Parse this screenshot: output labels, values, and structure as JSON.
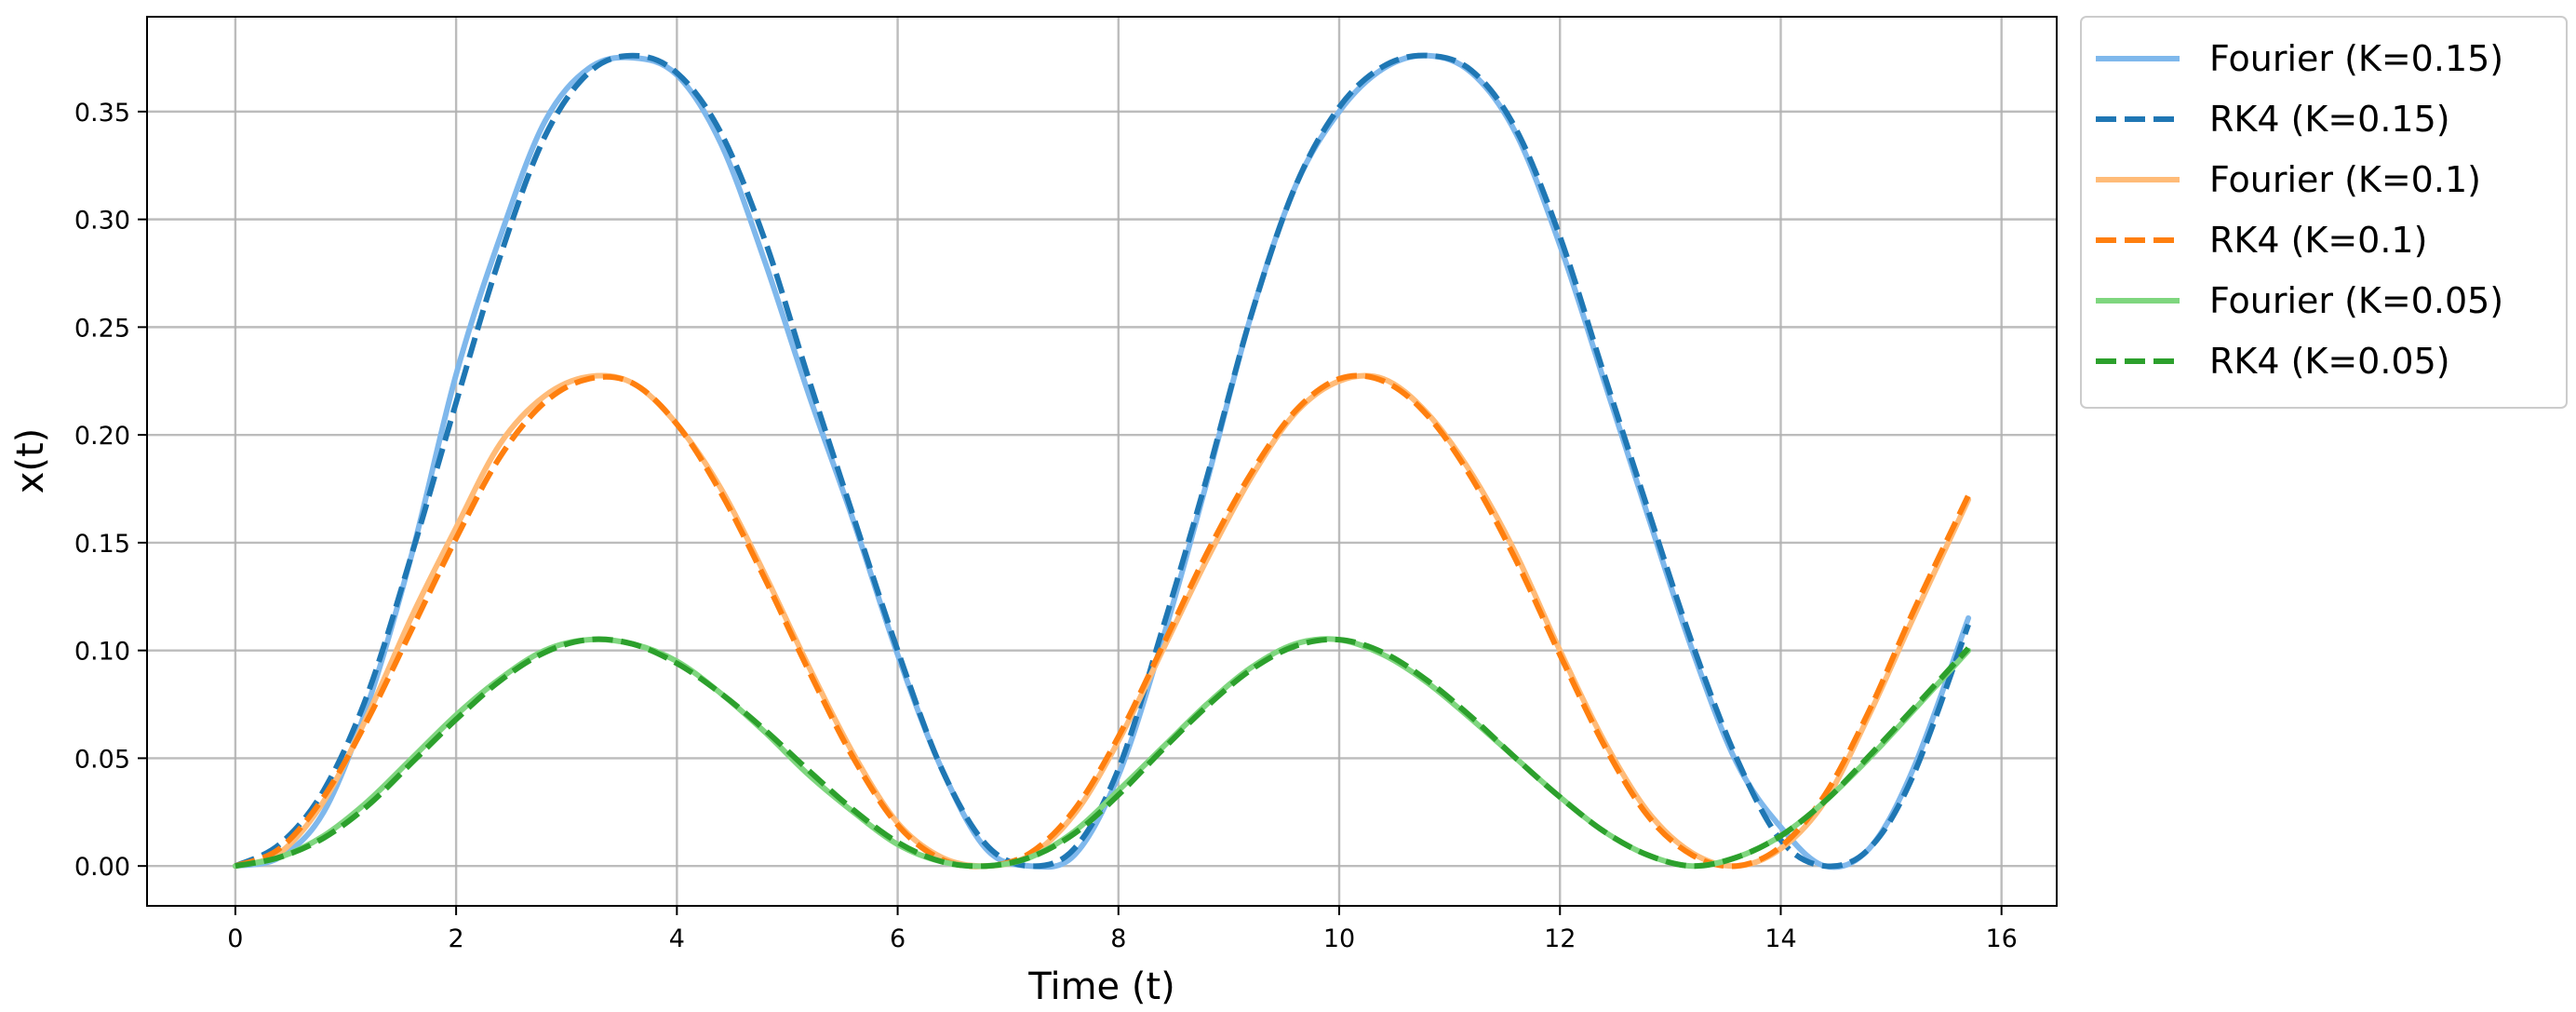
{
  "chart_data": {
    "type": "line",
    "title": "",
    "xlabel": "Time (t)",
    "ylabel": "x(t)",
    "xlim": [
      -0.8,
      16.5
    ],
    "ylim": [
      -0.0185,
      0.394
    ],
    "x_ticks": [
      0,
      2,
      4,
      6,
      8,
      10,
      12,
      14,
      16
    ],
    "y_ticks": [
      0.0,
      0.05,
      0.1,
      0.15,
      0.2,
      0.25,
      0.3,
      0.35
    ],
    "y_tick_labels": [
      "0.00",
      "0.05",
      "0.10",
      "0.15",
      "0.20",
      "0.25",
      "0.30",
      "0.35"
    ],
    "grid": true,
    "legend_position": "outside-top-right",
    "series": [
      {
        "name": "Fourier (K=0.15)",
        "color": "#7fb8ec",
        "style": "solid",
        "x": [
          0,
          0.4,
          0.8,
          1.2,
          1.6,
          2.0,
          2.4,
          2.8,
          3.2,
          3.6,
          4.0,
          4.4,
          4.8,
          5.2,
          5.6,
          6.0,
          6.4,
          6.8,
          7.2,
          7.6,
          8.0,
          8.4,
          8.8,
          9.2,
          9.6,
          10.0,
          10.4,
          10.8,
          11.2,
          11.6,
          12.0,
          12.4,
          12.8,
          13.2,
          13.6,
          14.0,
          14.4,
          14.8,
          15.2,
          15.7
        ],
        "y": [
          0.0,
          0.004,
          0.025,
          0.075,
          0.145,
          0.228,
          0.292,
          0.345,
          0.37,
          0.375,
          0.367,
          0.335,
          0.28,
          0.218,
          0.16,
          0.098,
          0.045,
          0.008,
          0.0,
          0.005,
          0.042,
          0.105,
          0.178,
          0.255,
          0.315,
          0.35,
          0.37,
          0.376,
          0.368,
          0.34,
          0.288,
          0.225,
          0.162,
          0.1,
          0.048,
          0.018,
          0.0,
          0.008,
          0.045,
          0.115
        ]
      },
      {
        "name": "RK4 (K=0.15)",
        "color": "#1f77b4",
        "style": "dashed",
        "x": [
          0,
          0.4,
          0.8,
          1.2,
          1.6,
          2.0,
          2.4,
          2.8,
          3.2,
          3.6,
          4.0,
          4.4,
          4.8,
          5.2,
          5.6,
          6.0,
          6.4,
          6.8,
          7.2,
          7.6,
          8.0,
          8.4,
          8.8,
          9.2,
          9.6,
          10.0,
          10.4,
          10.8,
          11.2,
          11.6,
          12.0,
          12.4,
          12.8,
          13.2,
          13.6,
          14.0,
          14.4,
          14.8,
          15.2,
          15.7
        ],
        "y": [
          0.0,
          0.01,
          0.035,
          0.08,
          0.145,
          0.215,
          0.283,
          0.338,
          0.368,
          0.376,
          0.368,
          0.34,
          0.29,
          0.225,
          0.162,
          0.1,
          0.045,
          0.01,
          0.0,
          0.008,
          0.045,
          0.11,
          0.18,
          0.255,
          0.315,
          0.352,
          0.371,
          0.376,
          0.369,
          0.342,
          0.292,
          0.228,
          0.165,
          0.103,
          0.05,
          0.012,
          0.0,
          0.008,
          0.042,
          0.112
        ]
      },
      {
        "name": "Fourier (K=0.1)",
        "color": "#ffbb78",
        "style": "solid",
        "x": [
          0,
          0.4,
          0.8,
          1.2,
          1.6,
          2.0,
          2.4,
          2.8,
          3.2,
          3.6,
          4.0,
          4.4,
          4.8,
          5.2,
          5.6,
          6.0,
          6.4,
          6.8,
          7.2,
          7.6,
          8.0,
          8.4,
          8.8,
          9.2,
          9.6,
          10.0,
          10.4,
          10.8,
          11.2,
          11.6,
          12.0,
          12.4,
          12.8,
          13.2,
          13.6,
          14.0,
          14.4,
          14.8,
          15.2,
          15.7
        ],
        "y": [
          0.0,
          0.006,
          0.03,
          0.07,
          0.116,
          0.157,
          0.196,
          0.218,
          0.227,
          0.224,
          0.205,
          0.175,
          0.135,
          0.092,
          0.052,
          0.02,
          0.004,
          0.0,
          0.005,
          0.024,
          0.058,
          0.1,
          0.142,
          0.18,
          0.21,
          0.225,
          0.226,
          0.21,
          0.182,
          0.145,
          0.1,
          0.058,
          0.025,
          0.006,
          0.0,
          0.008,
          0.03,
          0.07,
          0.115,
          0.17
        ]
      },
      {
        "name": "RK4 (K=0.1)",
        "color": "#ff7f0e",
        "style": "dashed",
        "x": [
          0,
          0.4,
          0.8,
          1.2,
          1.6,
          2.0,
          2.4,
          2.8,
          3.2,
          3.6,
          4.0,
          4.4,
          4.8,
          5.2,
          5.6,
          6.0,
          6.4,
          6.8,
          7.2,
          7.6,
          8.0,
          8.4,
          8.8,
          9.2,
          9.6,
          10.0,
          10.4,
          10.8,
          11.2,
          11.6,
          12.0,
          12.4,
          12.8,
          13.2,
          13.6,
          14.0,
          14.4,
          14.8,
          15.2,
          15.7
        ],
        "y": [
          0.0,
          0.008,
          0.032,
          0.068,
          0.11,
          0.152,
          0.19,
          0.215,
          0.226,
          0.224,
          0.205,
          0.173,
          0.133,
          0.09,
          0.05,
          0.019,
          0.003,
          0.0,
          0.006,
          0.026,
          0.06,
          0.102,
          0.145,
          0.182,
          0.211,
          0.226,
          0.225,
          0.209,
          0.18,
          0.142,
          0.098,
          0.056,
          0.023,
          0.005,
          0.0,
          0.009,
          0.033,
          0.072,
          0.118,
          0.172
        ]
      },
      {
        "name": "Fourier (K=0.05)",
        "color": "#7fd67f",
        "style": "solid",
        "x": [
          0,
          0.4,
          0.8,
          1.2,
          1.6,
          2.0,
          2.4,
          2.8,
          3.2,
          3.6,
          4.0,
          4.4,
          4.8,
          5.2,
          5.6,
          6.0,
          6.4,
          6.8,
          7.2,
          7.6,
          8.0,
          8.4,
          8.8,
          9.2,
          9.6,
          10.0,
          10.4,
          10.8,
          11.2,
          11.6,
          12.0,
          12.4,
          12.8,
          13.2,
          13.6,
          14.0,
          14.4,
          14.8,
          15.2,
          15.7
        ],
        "y": [
          0.0,
          0.004,
          0.014,
          0.03,
          0.05,
          0.07,
          0.087,
          0.1,
          0.105,
          0.103,
          0.095,
          0.08,
          0.062,
          0.042,
          0.025,
          0.01,
          0.002,
          0.0,
          0.004,
          0.016,
          0.035,
          0.055,
          0.075,
          0.092,
          0.103,
          0.105,
          0.098,
          0.085,
          0.068,
          0.05,
          0.032,
          0.016,
          0.005,
          0.0,
          0.004,
          0.014,
          0.03,
          0.05,
          0.072,
          0.1
        ]
      },
      {
        "name": "RK4 (K=0.05)",
        "color": "#2ca02c",
        "style": "dashed",
        "x": [
          0,
          0.4,
          0.8,
          1.2,
          1.6,
          2.0,
          2.4,
          2.8,
          3.2,
          3.6,
          4.0,
          4.4,
          4.8,
          5.2,
          5.6,
          6.0,
          6.4,
          6.8,
          7.2,
          7.6,
          8.0,
          8.4,
          8.8,
          9.2,
          9.6,
          10.0,
          10.4,
          10.8,
          11.2,
          11.6,
          12.0,
          12.4,
          12.8,
          13.2,
          13.6,
          14.0,
          14.4,
          14.8,
          15.2,
          15.7
        ],
        "y": [
          0.0,
          0.004,
          0.013,
          0.028,
          0.048,
          0.068,
          0.086,
          0.099,
          0.105,
          0.103,
          0.094,
          0.08,
          0.063,
          0.044,
          0.026,
          0.011,
          0.002,
          0.0,
          0.004,
          0.015,
          0.033,
          0.054,
          0.074,
          0.091,
          0.102,
          0.105,
          0.099,
          0.086,
          0.069,
          0.05,
          0.032,
          0.016,
          0.005,
          0.0,
          0.004,
          0.014,
          0.03,
          0.051,
          0.073,
          0.101
        ]
      }
    ]
  }
}
